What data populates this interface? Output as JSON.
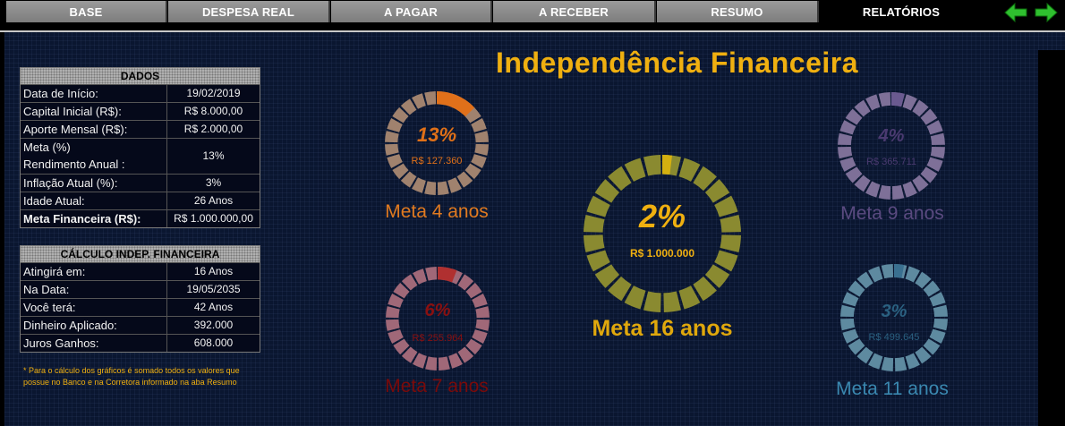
{
  "tabs": [
    {
      "label": "BASE"
    },
    {
      "label": "DESPESA REAL"
    },
    {
      "label": "A PAGAR"
    },
    {
      "label": "A RECEBER"
    },
    {
      "label": "RESUMO"
    },
    {
      "label": "RELATÓRIOS",
      "active": true
    }
  ],
  "nav": {
    "back_icon": "arrow-left-icon",
    "forward_icon": "arrow-right-icon",
    "color": "#2fbf2f"
  },
  "title": "Independência Financeira",
  "dados": {
    "header": "DADOS",
    "rows": [
      {
        "label": "Data de Início:",
        "value": "19/02/2019"
      },
      {
        "label": "Capital Inicial (R$):",
        "value": "R$ 8.000,00"
      },
      {
        "label": "Aporte Mensal (R$):",
        "value": "R$ 2.000,00"
      },
      {
        "label": "Meta (%)",
        "label2": "Rendimento  Anual :",
        "value": "13%"
      },
      {
        "label": "Inflação Atual (%):",
        "value": "3%"
      },
      {
        "label": "Idade Atual:",
        "value": "26 Anos"
      },
      {
        "label": "Meta Financeira (R$):",
        "value": "R$ 1.000.000,00"
      }
    ]
  },
  "calculo": {
    "header": "CÁLCULO INDEP. FINANCEIRA",
    "rows": [
      {
        "label": "Atingirá em:",
        "value": "16 Anos"
      },
      {
        "label": "Na Data:",
        "value": "19/05/2035"
      },
      {
        "label": "Você terá:",
        "value": "42 Anos"
      },
      {
        "label": "Dinheiro Aplicado:",
        "value": "392.000"
      },
      {
        "label": "Juros Ganhos:",
        "value": "608.000"
      }
    ]
  },
  "note": "* Para o cálculo dos gráficos é somado todos os valores que possue no Banco e na Corretora informado na aba Resumo",
  "gauges": {
    "g4": {
      "pct": "13%",
      "amount": "R$ 127.360",
      "label": "Meta  4  anos",
      "fraction": 0.13,
      "ring": "#a0826e",
      "fill": "#e0701a",
      "text": "#e07018",
      "label_color": "#e07a20"
    },
    "g7": {
      "pct": "6%",
      "amount": "R$ 255.964",
      "label": "Meta  7  anos",
      "fraction": 0.06,
      "ring": "#a06878",
      "fill": "#b03030",
      "text": "#8a1010",
      "label_color": "#7a0a0a"
    },
    "g16": {
      "pct": "2%",
      "amount": "R$ 1.000.000",
      "label": "Meta  16  anos",
      "fraction": 0.02,
      "ring": "#8a8a30",
      "fill": "#d4b010",
      "text": "#f0b010",
      "label_color": "#e0a80c"
    },
    "g9": {
      "pct": "4%",
      "amount": "R$ 365.711",
      "label": "Meta  9  anos",
      "fraction": 0.04,
      "ring": "#7e7098",
      "fill": "#6a5a90",
      "text": "#4a3a70",
      "label_color": "#5a4a80"
    },
    "g11": {
      "pct": "3%",
      "amount": "R$ 499.645",
      "label": "Meta 11  anos",
      "fraction": 0.03,
      "ring": "#5e8aa0",
      "fill": "#3a7090",
      "text": "#2a6080",
      "label_color": "#3a88b0"
    }
  }
}
